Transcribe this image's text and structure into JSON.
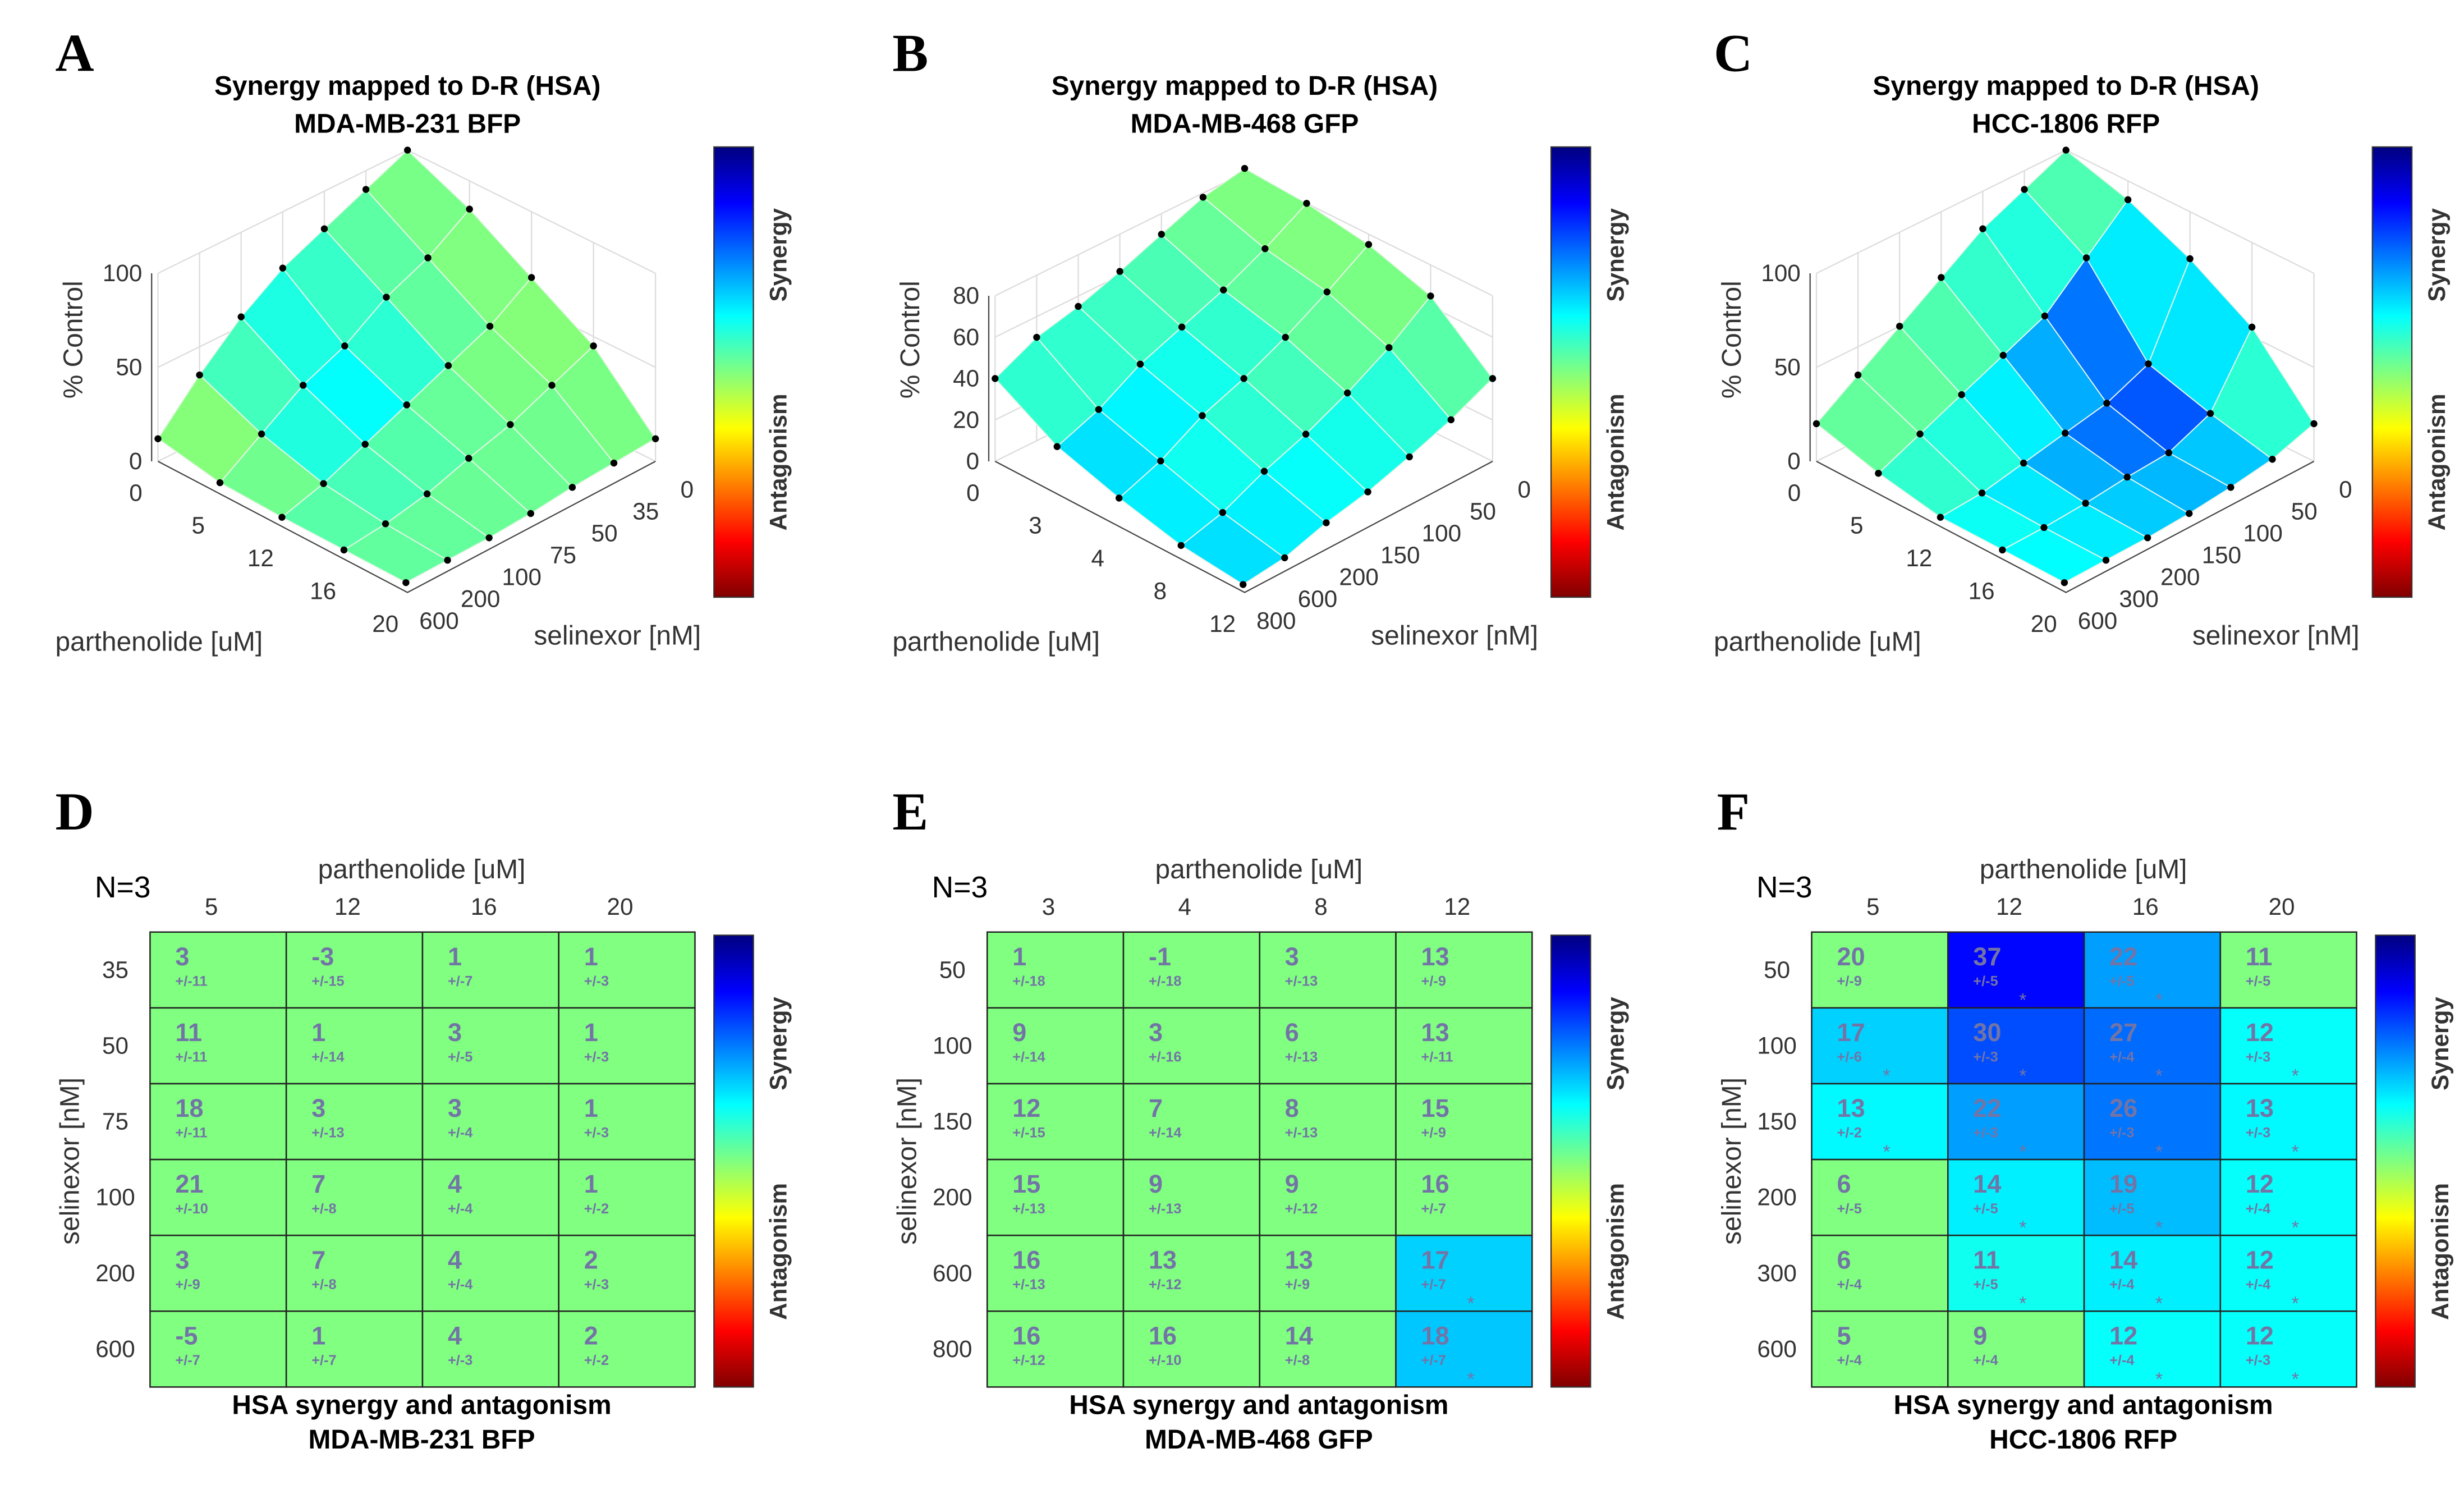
{
  "colorbar": {
    "top_label": "Synergy",
    "bottom_label": "Antagonism"
  },
  "chart_data": [
    {
      "type": "surface",
      "letter": "A",
      "title": [
        "Synergy mapped to D-R (HSA)",
        "MDA-MB-231 BFP"
      ],
      "xlabel": "parthenolide [uM]",
      "ylabel": "selinexor [nM]",
      "zlabel": "% Control",
      "p_ticks": [
        "0",
        "5",
        "12",
        "16",
        "20"
      ],
      "s_ticks": [
        "0",
        "35",
        "50",
        "75",
        "100",
        "200",
        "600"
      ],
      "z_ticks": [
        0,
        50,
        100
      ],
      "z": [
        [
          100,
          90,
          80,
          70,
          55,
          35,
          12
        ],
        [
          85,
          70,
          60,
          45,
          35,
          20,
          5
        ],
        [
          65,
          50,
          40,
          30,
          20,
          10,
          3
        ],
        [
          45,
          35,
          25,
          18,
          10,
          5,
          2
        ],
        [
          12,
          10,
          8,
          5,
          3,
          2,
          1
        ]
      ]
    },
    {
      "type": "surface",
      "letter": "B",
      "title": [
        "Synergy mapped to D-R (HSA)",
        "MDA-MB-468 GFP"
      ],
      "xlabel": "parthenolide [uM]",
      "ylabel": "selinexor [nM]",
      "zlabel": "% Control",
      "p_ticks": [
        "0",
        "3",
        "4",
        "8",
        "12"
      ],
      "s_ticks": [
        "0",
        "50",
        "100",
        "150",
        "200",
        "600",
        "800"
      ],
      "z_ticks": [
        0,
        20,
        40,
        60,
        80
      ],
      "z": [
        [
          82,
          78,
          70,
          62,
          55,
          50,
          40
        ],
        [
          80,
          68,
          58,
          50,
          42,
          30,
          22
        ],
        [
          75,
          62,
          50,
          40,
          32,
          20,
          12
        ],
        [
          65,
          50,
          38,
          28,
          20,
          10,
          4
        ],
        [
          40,
          30,
          22,
          15,
          10,
          3,
          0
        ]
      ]
    },
    {
      "type": "surface",
      "letter": "C",
      "title": [
        "Synergy mapped to D-R (HSA)",
        "HCC-1806 RFP"
      ],
      "xlabel": "parthenolide [uM]",
      "ylabel": "selinexor [nM]",
      "zlabel": "% Control",
      "p_ticks": [
        "0",
        "5",
        "12",
        "16",
        "20"
      ],
      "s_ticks": [
        "0",
        "50",
        "100",
        "150",
        "200",
        "300",
        "600"
      ],
      "z_ticks": [
        0,
        50,
        100
      ],
      "z": [
        [
          100,
          90,
          80,
          65,
          50,
          35,
          20
        ],
        [
          90,
          70,
          50,
          40,
          30,
          20,
          10
        ],
        [
          75,
          30,
          20,
          15,
          10,
          5,
          3
        ],
        [
          55,
          20,
          10,
          8,
          5,
          3,
          2
        ],
        [
          20,
          12,
          8,
          5,
          3,
          2,
          1
        ]
      ]
    },
    {
      "type": "heatmap",
      "letter": "D",
      "n_label": "N=3",
      "xlabel": "parthenolide [uM]",
      "ylabel": "selinexor [nM]",
      "title": [
        "HSA synergy and antagonism",
        "MDA-MB-231 BFP"
      ],
      "cols": [
        "5",
        "12",
        "16",
        "20"
      ],
      "rows": [
        "35",
        "50",
        "75",
        "100",
        "200",
        "600"
      ],
      "values": [
        [
          3,
          -3,
          1,
          1
        ],
        [
          11,
          1,
          3,
          1
        ],
        [
          18,
          3,
          3,
          1
        ],
        [
          21,
          7,
          4,
          1
        ],
        [
          3,
          7,
          4,
          2
        ],
        [
          -5,
          1,
          4,
          2
        ]
      ],
      "errors": [
        [
          "+/-11",
          "+/-15",
          "+/-7",
          "+/-3"
        ],
        [
          "+/-11",
          "+/-14",
          "+/-5",
          "+/-3"
        ],
        [
          "+/-11",
          "+/-13",
          "+/-4",
          "+/-3"
        ],
        [
          "+/-10",
          "+/-8",
          "+/-4",
          "+/-2"
        ],
        [
          "+/-9",
          "+/-8",
          "+/-4",
          "+/-3"
        ],
        [
          "+/-7",
          "+/-7",
          "+/-3",
          "+/-2"
        ]
      ],
      "significant": [
        [
          false,
          false,
          false,
          false
        ],
        [
          false,
          false,
          false,
          false
        ],
        [
          false,
          false,
          false,
          false
        ],
        [
          false,
          false,
          false,
          false
        ],
        [
          false,
          false,
          false,
          false
        ],
        [
          false,
          false,
          false,
          false
        ]
      ],
      "significance_mark": "*"
    },
    {
      "type": "heatmap",
      "letter": "E",
      "n_label": "N=3",
      "xlabel": "parthenolide [uM]",
      "ylabel": "selinexor [nM]",
      "title": [
        "HSA synergy and antagonism",
        "MDA-MB-468 GFP"
      ],
      "cols": [
        "3",
        "4",
        "8",
        "12"
      ],
      "rows": [
        "50",
        "100",
        "150",
        "200",
        "600",
        "800"
      ],
      "values": [
        [
          1,
          -1,
          3,
          13
        ],
        [
          9,
          3,
          6,
          13
        ],
        [
          12,
          7,
          8,
          15
        ],
        [
          15,
          9,
          9,
          16
        ],
        [
          16,
          13,
          13,
          17
        ],
        [
          16,
          16,
          14,
          18
        ]
      ],
      "errors": [
        [
          "+/-18",
          "+/-18",
          "+/-13",
          "+/-9"
        ],
        [
          "+/-14",
          "+/-16",
          "+/-13",
          "+/-11"
        ],
        [
          "+/-15",
          "+/-14",
          "+/-13",
          "+/-9"
        ],
        [
          "+/-13",
          "+/-13",
          "+/-12",
          "+/-7"
        ],
        [
          "+/-13",
          "+/-12",
          "+/-9",
          "+/-7"
        ],
        [
          "+/-12",
          "+/-10",
          "+/-8",
          "+/-7"
        ]
      ],
      "significant": [
        [
          false,
          false,
          false,
          false
        ],
        [
          false,
          false,
          false,
          false
        ],
        [
          false,
          false,
          false,
          false
        ],
        [
          false,
          false,
          false,
          false
        ],
        [
          false,
          false,
          false,
          true
        ],
        [
          false,
          false,
          false,
          true
        ]
      ],
      "significance_mark": "*"
    },
    {
      "type": "heatmap",
      "letter": "F",
      "n_label": "N=3",
      "xlabel": "parthenolide [uM]",
      "ylabel": "selinexor [nM]",
      "title": [
        "HSA synergy and antagonism",
        "HCC-1806 RFP"
      ],
      "cols": [
        "5",
        "12",
        "16",
        "20"
      ],
      "rows": [
        "50",
        "100",
        "150",
        "200",
        "300",
        "600"
      ],
      "values": [
        [
          20,
          37,
          22,
          11
        ],
        [
          17,
          30,
          27,
          12
        ],
        [
          13,
          22,
          26,
          13
        ],
        [
          6,
          14,
          19,
          12
        ],
        [
          6,
          11,
          14,
          12
        ],
        [
          5,
          9,
          12,
          12
        ]
      ],
      "errors": [
        [
          "+/-9",
          "+/-5",
          "+/-5",
          "+/-5"
        ],
        [
          "+/-6",
          "+/-3",
          "+/-4",
          "+/-3"
        ],
        [
          "+/-2",
          "+/-3",
          "+/-3",
          "+/-3"
        ],
        [
          "+/-5",
          "+/-5",
          "+/-5",
          "+/-4"
        ],
        [
          "+/-4",
          "+/-5",
          "+/-4",
          "+/-4"
        ],
        [
          "+/-4",
          "+/-4",
          "+/-4",
          "+/-3"
        ]
      ],
      "significant": [
        [
          false,
          true,
          true,
          false
        ],
        [
          true,
          true,
          true,
          true
        ],
        [
          true,
          true,
          true,
          true
        ],
        [
          false,
          true,
          true,
          true
        ],
        [
          false,
          true,
          true,
          true
        ],
        [
          false,
          false,
          true,
          true
        ]
      ],
      "significance_mark": "*"
    }
  ]
}
